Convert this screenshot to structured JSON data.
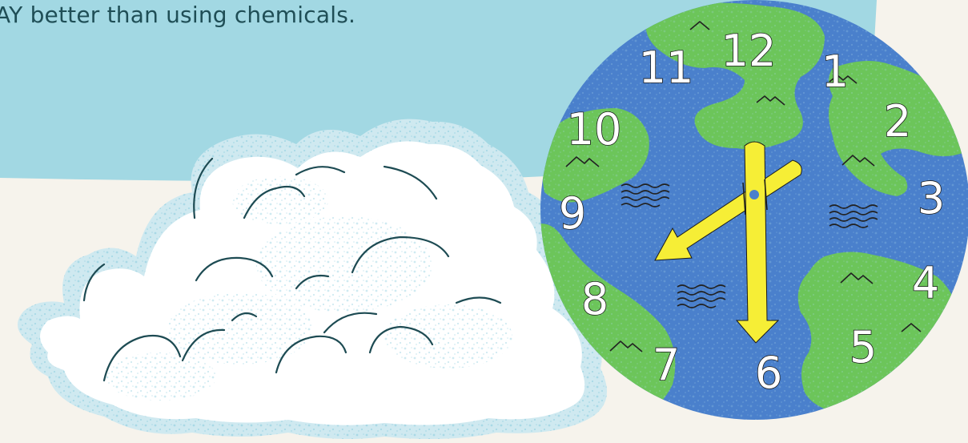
{
  "headline": "AY better than using chemicals.",
  "clock": {
    "numerals": [
      "12",
      "1",
      "2",
      "3",
      "4",
      "5",
      "6",
      "7",
      "8",
      "9",
      "10",
      "11"
    ],
    "hands": {
      "hour_points_to": 8,
      "minute_points_to": 6
    }
  },
  "colors": {
    "sky": "#a2d8e3",
    "background": "#f6f3ec",
    "ocean": "#4a80cc",
    "land": "#6cc55a",
    "hands": "#f6ee36",
    "cloud_outline": "#1d4b53",
    "cloud_speckle": "#a9d9e6",
    "headline_text": "#1f4e56"
  },
  "icons": [
    "mountain-icon",
    "waves-icon",
    "cloud-illustration",
    "earth-clock"
  ]
}
